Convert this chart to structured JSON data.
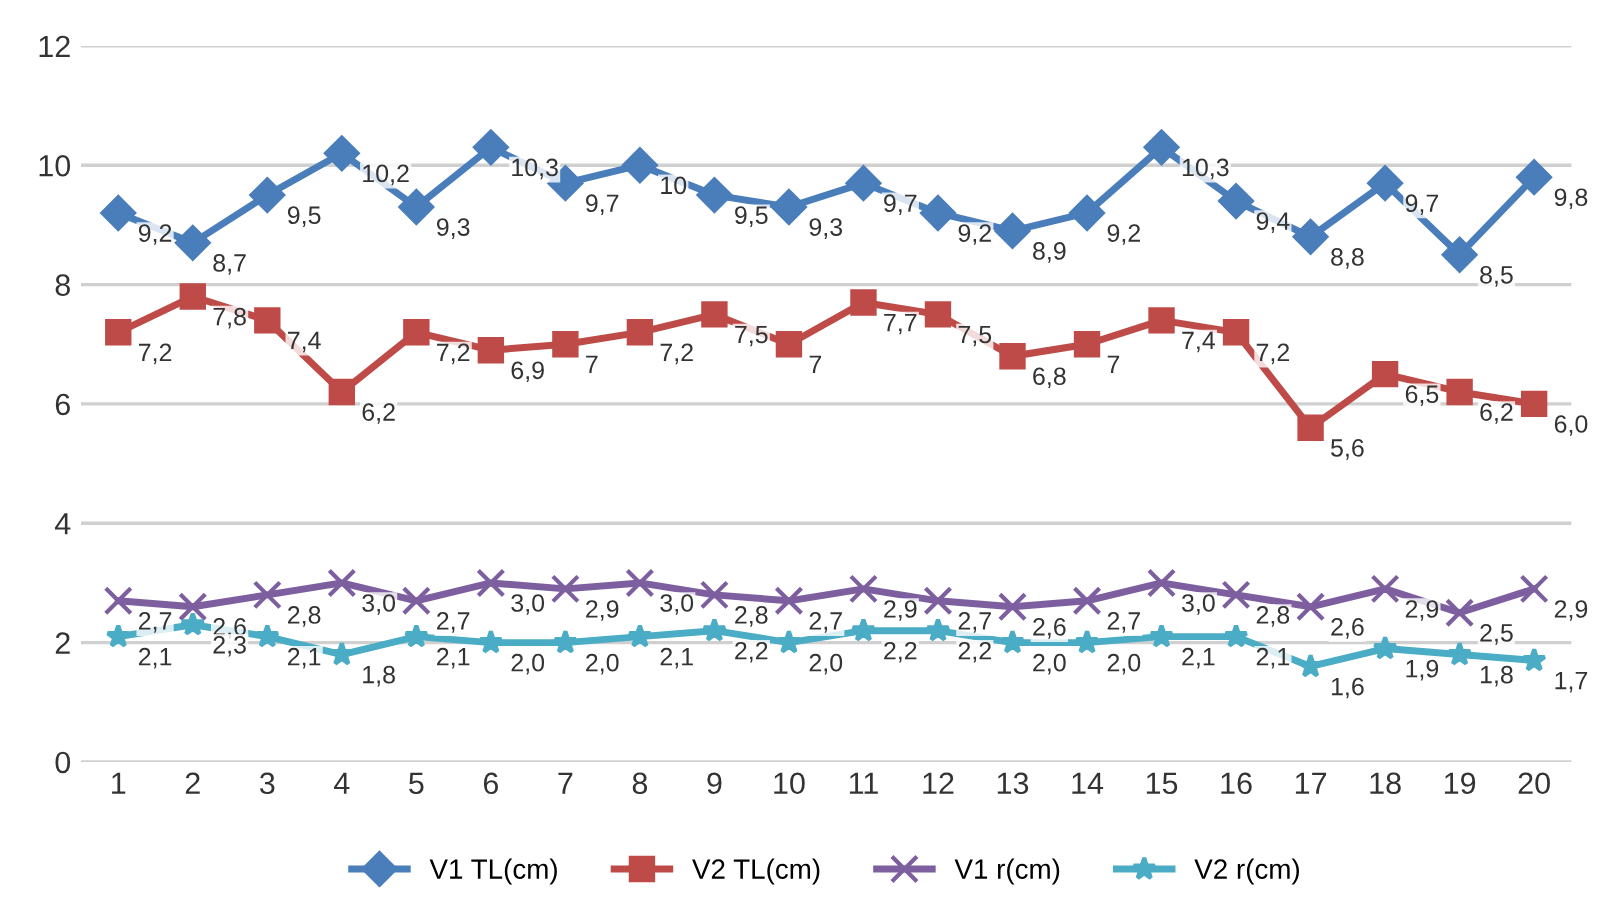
{
  "chart_data": {
    "type": "line",
    "categories": [
      "1",
      "2",
      "3",
      "4",
      "5",
      "6",
      "7",
      "8",
      "9",
      "10",
      "11",
      "12",
      "13",
      "14",
      "15",
      "16",
      "17",
      "18",
      "19",
      "20"
    ],
    "ylim": [
      0,
      12
    ],
    "yticks": [
      0,
      2,
      4,
      6,
      8,
      10,
      12
    ],
    "grid": "y",
    "legend": "bottom",
    "series": [
      {
        "name": "V1 TL(cm)",
        "color": "#4a7ebb",
        "marker": "diamond",
        "values": [
          9.2,
          8.7,
          9.5,
          10.2,
          9.3,
          10.3,
          9.7,
          10,
          9.5,
          9.3,
          9.7,
          9.2,
          8.9,
          9.2,
          10.3,
          9.4,
          8.8,
          9.7,
          8.5,
          9.8
        ],
        "value_labels": [
          "9,2",
          "8,7",
          "9,5",
          "10,2",
          "9,3",
          "10,3",
          "9,7",
          "10",
          "9,5",
          "9,3",
          "9,7",
          "9,2",
          "8,9",
          "9,2",
          "10,3",
          "9,4",
          "8,8",
          "9,7",
          "8,5",
          "9,8"
        ]
      },
      {
        "name": "V2 TL(cm)",
        "color": "#be4b48",
        "marker": "square",
        "values": [
          7.2,
          7.8,
          7.4,
          6.2,
          7.2,
          6.9,
          7,
          7.2,
          7.5,
          7,
          7.7,
          7.5,
          6.8,
          7,
          7.4,
          7.2,
          5.6,
          6.5,
          6.2,
          6.0
        ],
        "value_labels": [
          "7,2",
          "7,8",
          "7,4",
          "6,2",
          "7,2",
          "6,9",
          "7",
          "7,2",
          "7,5",
          "7",
          "7,7",
          "7,5",
          "6,8",
          "7",
          "7,4",
          "7,2",
          "5,6",
          "6,5",
          "6,2",
          "6,0"
        ]
      },
      {
        "name": "V1 r(cm)",
        "color": "#7d5fa0",
        "marker": "cross",
        "values": [
          2.7,
          2.6,
          2.8,
          3.0,
          2.7,
          3.0,
          2.9,
          3.0,
          2.8,
          2.7,
          2.9,
          2.7,
          2.6,
          2.7,
          3.0,
          2.8,
          2.6,
          2.9,
          2.5,
          2.9
        ],
        "value_labels": [
          "2,7",
          "2,6",
          "2,8",
          "3,0",
          "2,7",
          "3,0",
          "2,9",
          "3,0",
          "2,8",
          "2,7",
          "2,9",
          "2,7",
          "2,6",
          "2,7",
          "3,0",
          "2,8",
          "2,6",
          "2,9",
          "2,5",
          "2,9"
        ]
      },
      {
        "name": "V2 r(cm)",
        "color": "#4bacc6",
        "marker": "star",
        "values": [
          2.1,
          2.3,
          2.1,
          1.8,
          2.1,
          2.0,
          2.0,
          2.1,
          2.2,
          2.0,
          2.2,
          2.2,
          2.0,
          2.0,
          2.1,
          2.1,
          1.6,
          1.9,
          1.8,
          1.7
        ],
        "value_labels": [
          "2,1",
          "2,3",
          "2,1",
          "1,8",
          "2,1",
          "2,0",
          "2,0",
          "2,1",
          "2,2",
          "2,0",
          "2,2",
          "2,2",
          "2,0",
          "2,0",
          "2,1",
          "2,1",
          "1,6",
          "1,9",
          "1,8",
          "1,7"
        ]
      }
    ]
  }
}
